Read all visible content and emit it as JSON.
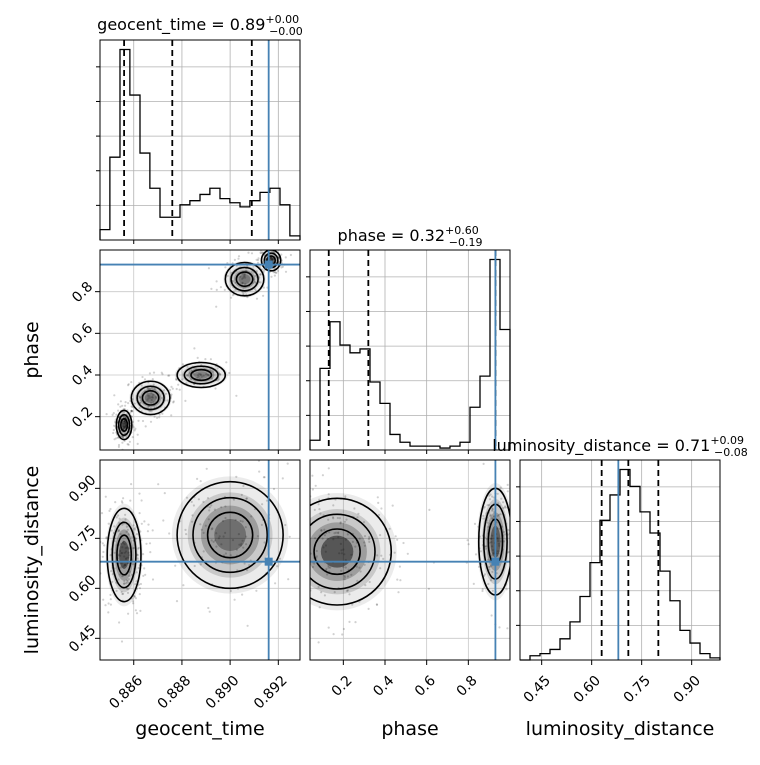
{
  "chart_data": {
    "type": "scatter",
    "grid": true,
    "parameters": [
      "geocent_time",
      "phase",
      "luminosity_distance"
    ],
    "truths": {
      "geocent_time": 0.8916,
      "phase": 0.93,
      "luminosity_distance": 0.68
    },
    "truth_color": "#4682b4",
    "titles": {
      "geocent_time": {
        "prefix": "geocent_time = ",
        "median": "0.89",
        "plus": "+0.00",
        "minus": "−0.00"
      },
      "phase": {
        "prefix": "phase = ",
        "median": "0.32",
        "plus": "+0.60",
        "minus": "−0.19"
      },
      "luminosity_distance": {
        "prefix": "luminosity_distance = ",
        "median": "0.71",
        "plus": "+0.09",
        "minus": "−0.08"
      }
    },
    "axes": {
      "geocent_time": {
        "range": [
          0.8846,
          0.8929
        ],
        "ticks": [
          0.886,
          0.888,
          0.89,
          0.892
        ],
        "tick_labels": [
          "0.886",
          "0.888",
          "0.890",
          "0.892"
        ]
      },
      "phase": {
        "range": [
          0.04,
          1.0
        ],
        "ticks": [
          0.2,
          0.4,
          0.6,
          0.8
        ],
        "tick_labels": [
          "0.2",
          "0.4",
          "0.6",
          "0.8"
        ]
      },
      "luminosity_distance": {
        "range": [
          0.385,
          0.985
        ],
        "ticks": [
          0.45,
          0.6,
          0.75,
          0.9
        ],
        "tick_labels": [
          "0.45",
          "0.60",
          "0.75",
          "0.90"
        ]
      }
    },
    "marginals": {
      "geocent_time": {
        "quantiles": [
          0.8856,
          0.8876,
          0.8909
        ],
        "bin_edges": [
          0.8846,
          0.88501,
          0.88543,
          0.88584,
          0.88626,
          0.88667,
          0.88709,
          0.8875,
          0.88792,
          0.88833,
          0.88875,
          0.88916,
          0.88958,
          0.88999,
          0.89041,
          0.89082,
          0.89124,
          0.89165,
          0.89207,
          0.89248,
          0.8929
        ],
        "counts": [
          0.05,
          0.4,
          0.92,
          0.7,
          0.42,
          0.25,
          0.11,
          0.11,
          0.17,
          0.19,
          0.22,
          0.25,
          0.2,
          0.18,
          0.16,
          0.19,
          0.23,
          0.25,
          0.17,
          0.02
        ]
      },
      "phase": {
        "quantiles": [
          0.13,
          0.32,
          0.93
        ],
        "bin_edges": [
          0.04,
          0.088,
          0.136,
          0.184,
          0.232,
          0.28,
          0.328,
          0.376,
          0.424,
          0.472,
          0.52,
          0.568,
          0.616,
          0.664,
          0.712,
          0.76,
          0.808,
          0.856,
          0.904,
          0.952,
          1.0
        ],
        "counts": [
          0.05,
          0.42,
          0.66,
          0.54,
          0.5,
          0.52,
          0.35,
          0.24,
          0.08,
          0.04,
          0.02,
          0.02,
          0.02,
          0.01,
          0.02,
          0.04,
          0.22,
          0.38,
          0.98,
          0.62
        ]
      },
      "luminosity_distance": {
        "quantiles": [
          0.63,
          0.71,
          0.8
        ],
        "bin_edges": [
          0.385,
          0.415,
          0.445,
          0.475,
          0.505,
          0.535,
          0.565,
          0.595,
          0.625,
          0.655,
          0.685,
          0.715,
          0.745,
          0.775,
          0.805,
          0.835,
          0.865,
          0.895,
          0.925,
          0.955,
          0.985
        ],
        "counts": [
          0.0,
          0.02,
          0.03,
          0.05,
          0.1,
          0.18,
          0.3,
          0.46,
          0.66,
          0.78,
          0.9,
          0.82,
          0.7,
          0.6,
          0.42,
          0.28,
          0.14,
          0.08,
          0.03,
          0.01
        ]
      }
    },
    "joint": {
      "geocent_time_phase": {
        "modes": [
          [
            0.8856,
            0.16,
            0.00016,
            0.035,
            1.0
          ],
          [
            0.8867,
            0.29,
            0.0004,
            0.04,
            0.45
          ],
          [
            0.8888,
            0.4,
            0.0005,
            0.03,
            0.22
          ],
          [
            0.8906,
            0.86,
            0.0004,
            0.04,
            0.4
          ],
          [
            0.8917,
            0.95,
            0.0002,
            0.025,
            0.7
          ]
        ]
      },
      "geocent_time_luminosity_distance": {
        "modes": [
          [
            0.8856,
            0.7,
            0.00035,
            0.07,
            1.0
          ],
          [
            0.89,
            0.76,
            0.0011,
            0.08,
            0.55
          ]
        ]
      },
      "phase_luminosity_distance": {
        "modes": [
          [
            0.17,
            0.71,
            0.13,
            0.08,
            1.0
          ],
          [
            0.93,
            0.74,
            0.04,
            0.08,
            0.85
          ]
        ]
      }
    }
  }
}
